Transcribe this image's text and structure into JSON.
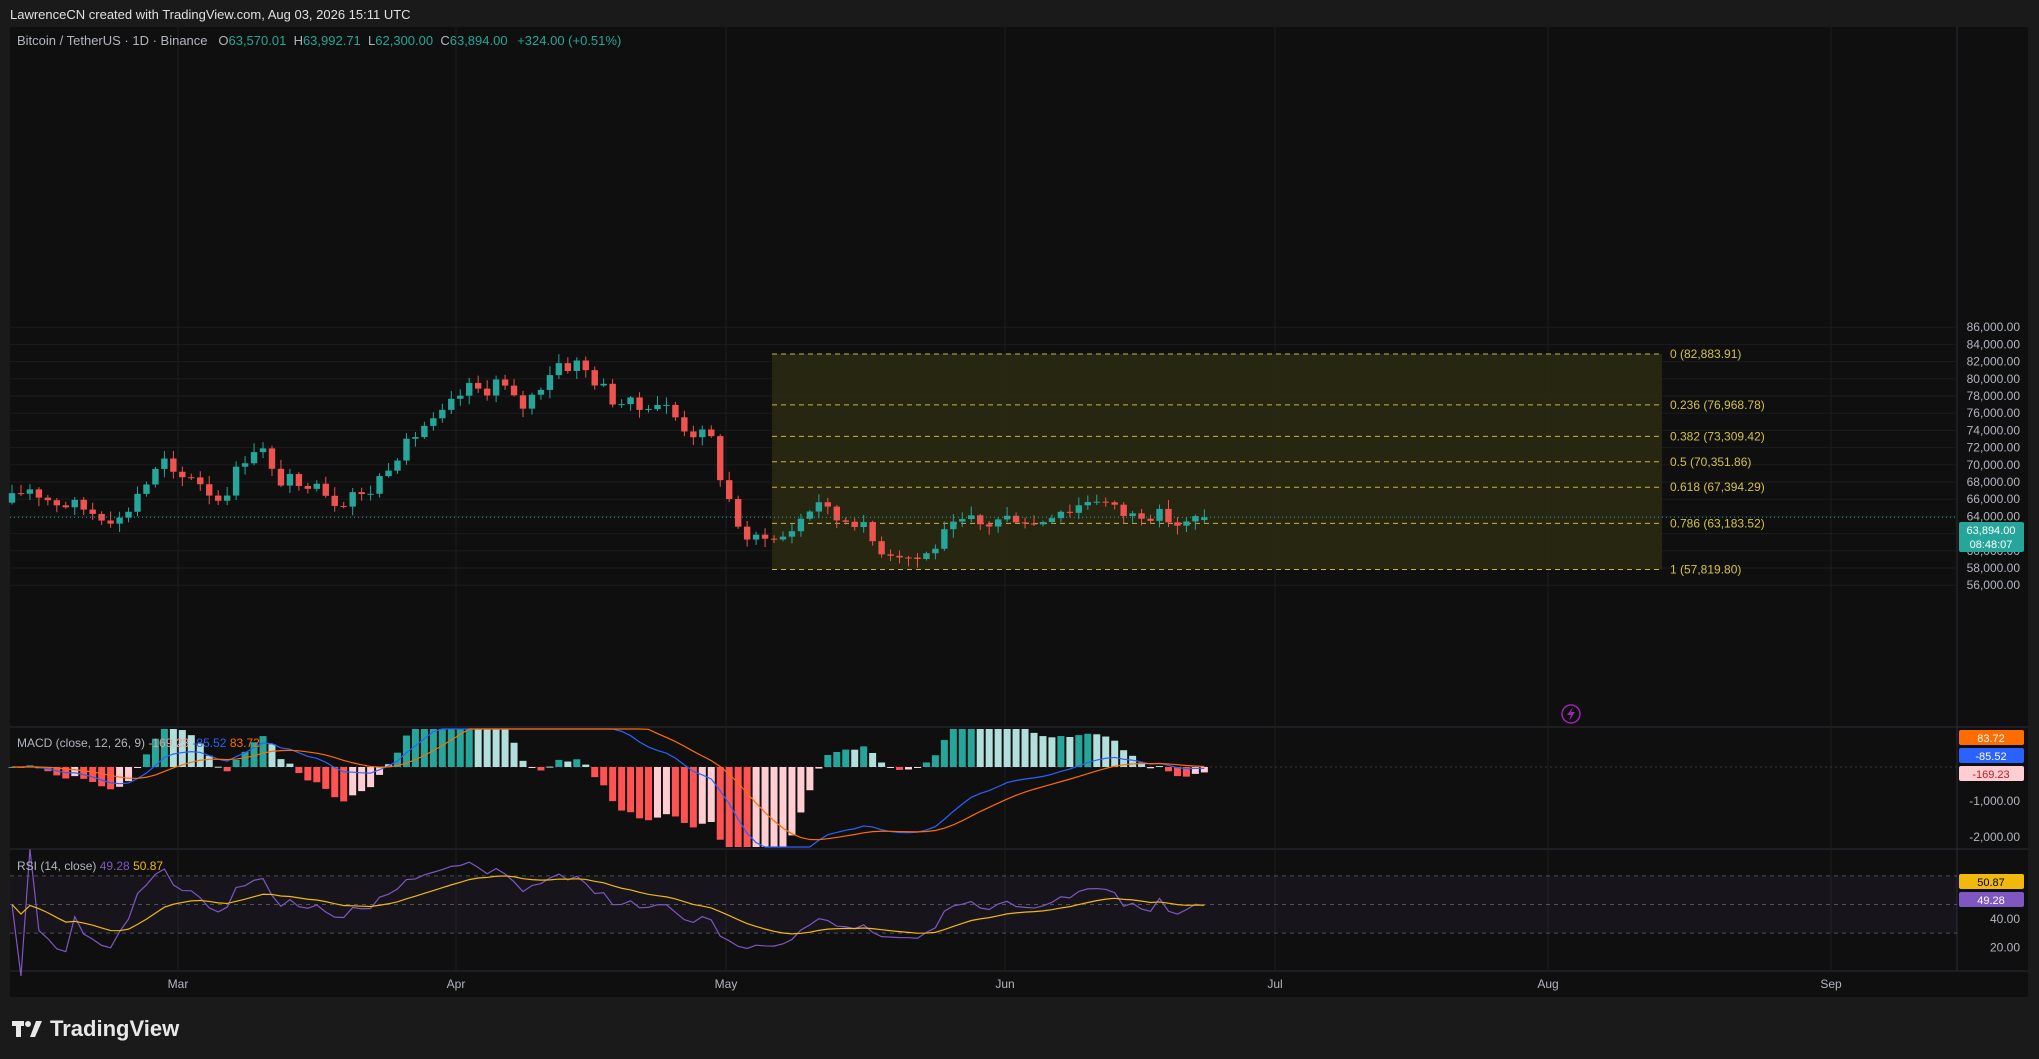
{
  "header": {
    "attribution": "LawrenceCN created with TradingView.com, Aug 03, 2026 15:11 UTC"
  },
  "legend": {
    "symbol": "Bitcoin / TetherUS · 1D · Binance",
    "o_label": "O",
    "o_value": "63,570.01",
    "h_label": "H",
    "h_value": "63,992.71",
    "l_label": "L",
    "l_value": "62,300.00",
    "c_label": "C",
    "c_value": "63,894.00",
    "change": "+324.00 (+0.51%)"
  },
  "colors": {
    "up": "#26a69a",
    "down": "#ef5350",
    "fib_line": "#c9b443",
    "fib_fill": "#2b2a12",
    "macd_line": "#2962ff",
    "signal_line": "#ff6d00",
    "rsi_line": "#7e57c2",
    "rsi_ma": "#f0b90b",
    "background": "#0f0f0f"
  },
  "chart_data": {
    "type": "candlestick",
    "symbol": "Bitcoin / TetherUS",
    "interval": "1D",
    "exchange": "Binance",
    "price_axis": {
      "ticks": [
        "86,000.00",
        "84,000.00",
        "82,000.00",
        "80,000.00",
        "78,000.00",
        "76,000.00",
        "74,000.00",
        "72,000.00",
        "70,000.00",
        "68,000.00",
        "66,000.00",
        "64,000.00",
        "62,000.00",
        "60,000.00",
        "58,000.00",
        "56,000.00"
      ],
      "last_price": "63,894.00",
      "countdown": "08:48:07"
    },
    "time_axis": [
      "Mar",
      "Apr",
      "May",
      "Jun",
      "Jul",
      "Aug",
      "Sep"
    ],
    "fibonacci": [
      {
        "label": "0 (82,883.91)",
        "price": 82883.91
      },
      {
        "label": "0.236 (76,968.78)",
        "price": 76968.78
      },
      {
        "label": "0.382 (73,309.42)",
        "price": 73309.42
      },
      {
        "label": "0.5 (70,351.86)",
        "price": 70351.86
      },
      {
        "label": "0.618 (67,394.29)",
        "price": 67394.29
      },
      {
        "label": "0.786 (63,183.52)",
        "price": 63183.52
      },
      {
        "label": "1 (57,819.80)",
        "price": 57819.8
      }
    ],
    "price_path": [
      [
        0,
        66000
      ],
      [
        4,
        67500
      ],
      [
        8,
        66200
      ],
      [
        12,
        65500
      ],
      [
        16,
        65200
      ],
      [
        20,
        64500
      ],
      [
        24,
        64000
      ],
      [
        27,
        63500
      ],
      [
        30,
        66500
      ],
      [
        34,
        68500
      ],
      [
        37,
        70500
      ],
      [
        40,
        68000
      ],
      [
        44,
        69000
      ],
      [
        47,
        67500
      ],
      [
        50,
        66000
      ],
      [
        53,
        67500
      ],
      [
        56,
        70500
      ],
      [
        59,
        72000
      ],
      [
        62,
        71500
      ],
      [
        64,
        68000
      ],
      [
        67,
        68500
      ],
      [
        70,
        67000
      ],
      [
        72,
        68000
      ],
      [
        74,
        69000
      ],
      [
        77,
        66500
      ],
      [
        80,
        65500
      ],
      [
        83,
        67000
      ],
      [
        86,
        66000
      ],
      [
        89,
        68000
      ],
      [
        93,
        71000
      ],
      [
        96,
        72000
      ],
      [
        100,
        74500
      ],
      [
        103,
        74800
      ],
      [
        106,
        76200
      ],
      [
        109,
        78000
      ],
      [
        112,
        79000
      ],
      [
        115,
        78500
      ],
      [
        118,
        79800
      ],
      [
        121,
        78500
      ],
      [
        124,
        76500
      ],
      [
        127,
        78000
      ],
      [
        130,
        80000
      ],
      [
        133,
        82000
      ],
      [
        135,
        81500
      ],
      [
        138,
        81800
      ],
      [
        141,
        80500
      ],
      [
        144,
        79000
      ],
      [
        147,
        77500
      ],
      [
        150,
        77200
      ],
      [
        153,
        76500
      ],
      [
        156,
        77500
      ],
      [
        159,
        77000
      ],
      [
        162,
        75500
      ],
      [
        165,
        74000
      ],
      [
        168,
        73500
      ],
      [
        171,
        72800
      ],
      [
        173,
        68500
      ],
      [
        175,
        66000
      ],
      [
        177,
        63500
      ],
      [
        179,
        60500
      ],
      [
        181,
        61200
      ],
      [
        183,
        62500
      ],
      [
        186,
        61200
      ],
      [
        189,
        61800
      ],
      [
        192,
        63500
      ],
      [
        195,
        65000
      ],
      [
        197,
        66000
      ],
      [
        199,
        64500
      ],
      [
        202,
        63500
      ],
      [
        205,
        64000
      ],
      [
        208,
        62500
      ],
      [
        211,
        60500
      ],
      [
        214,
        60000
      ],
      [
        217,
        59800
      ],
      [
        220,
        59000
      ],
      [
        223,
        59500
      ],
      [
        225,
        60500
      ],
      [
        228,
        62000
      ],
      [
        231,
        63000
      ],
      [
        234,
        63500
      ],
      [
        237,
        62800
      ],
      [
        240,
        63500
      ],
      [
        243,
        63800
      ],
      [
        246,
        64200
      ],
      [
        249,
        63000
      ],
      [
        252,
        63800
      ],
      [
        255,
        65000
      ],
      [
        258,
        64800
      ],
      [
        261,
        65500
      ],
      [
        264,
        66500
      ],
      [
        267,
        65500
      ],
      [
        270,
        64500
      ],
      [
        273,
        64000
      ],
      [
        276,
        64600
      ],
      [
        279,
        64200
      ],
      [
        282,
        63800
      ],
      [
        284,
        63200
      ],
      [
        286,
        62800
      ],
      [
        289,
        63700
      ],
      [
        291,
        63894
      ]
    ],
    "indicators": {
      "macd": {
        "label": "MACD (close, 12, 26, 9)",
        "histogram": "-169.23",
        "macd": "-85.52",
        "signal": "83.72",
        "axis": [
          "-1,000.00",
          "-2,000.00"
        ]
      },
      "rsi": {
        "label": "RSI (14, close)",
        "rsi": "49.28",
        "rsi_ma": "50.87",
        "axis": [
          "40.00",
          "20.00"
        ]
      }
    }
  },
  "branding": {
    "name": "TradingView"
  }
}
